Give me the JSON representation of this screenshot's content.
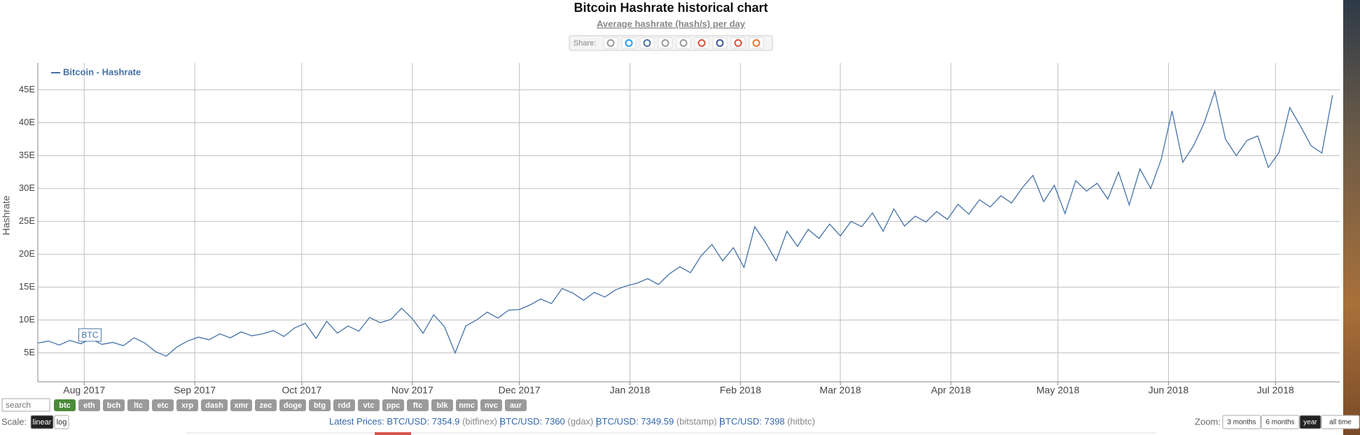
{
  "chart_data": {
    "type": "line",
    "title": "Bitcoin Hashrate historical chart",
    "subtitle": "Average hashrate (hash/s) per day",
    "ylabel": "Hashrate",
    "annotation": "BTC",
    "x": [
      0,
      3,
      6,
      9,
      12,
      15,
      18,
      21,
      24,
      27,
      30,
      33,
      36,
      39,
      42,
      45,
      48,
      51,
      54,
      57,
      60,
      63,
      66,
      69,
      72,
      75,
      78,
      81,
      84,
      87,
      90,
      93,
      96,
      99,
      102,
      105,
      108,
      111,
      114,
      117,
      120,
      123,
      126,
      129,
      132,
      135,
      138,
      141,
      144,
      147,
      150,
      153,
      156,
      159,
      162,
      165,
      168,
      171,
      174,
      177,
      180,
      183,
      186,
      189,
      192,
      195,
      198,
      201,
      204,
      207,
      210,
      213,
      216,
      219,
      222,
      225,
      228,
      231,
      234,
      237,
      240,
      243,
      246,
      249,
      252,
      255,
      258,
      261,
      264,
      267,
      270,
      273,
      276,
      279,
      282,
      285,
      288,
      291,
      294,
      297,
      300,
      303,
      306,
      309,
      312,
      315,
      318,
      321,
      324,
      327,
      330,
      333,
      336,
      339,
      342,
      345,
      348,
      351,
      354,
      357,
      360,
      363
    ],
    "series": [
      {
        "name": "Bitcoin - Hashrate",
        "color": "#4572a7",
        "values": [
          6.5,
          6.8,
          6.2,
          6.9,
          6.4,
          7.1,
          6.3,
          6.6,
          6.1,
          7.3,
          6.5,
          5.2,
          4.5,
          5.9,
          6.8,
          7.4,
          7.0,
          7.9,
          7.3,
          8.2,
          7.6,
          7.9,
          8.4,
          7.5,
          8.8,
          9.5,
          7.2,
          9.8,
          8.0,
          9.1,
          8.3,
          10.4,
          9.6,
          10.1,
          11.8,
          10.2,
          8.0,
          10.8,
          9.0,
          5.0,
          9.1,
          10.0,
          11.2,
          10.3,
          11.5,
          11.6,
          12.3,
          13.2,
          12.5,
          14.8,
          14.1,
          13.0,
          14.2,
          13.5,
          14.6,
          15.2,
          15.6,
          16.3,
          15.4,
          17.0,
          18.1,
          17.2,
          19.8,
          21.5,
          19.0,
          21.0,
          18.0,
          24.2,
          21.8,
          19.0,
          23.5,
          21.2,
          23.8,
          22.4,
          24.6,
          22.8,
          25.0,
          24.2,
          26.3,
          23.5,
          26.9,
          24.3,
          25.8,
          24.9,
          26.5,
          25.3,
          27.6,
          26.1,
          28.3,
          27.2,
          28.9,
          27.8,
          30.1,
          32.0,
          28.0,
          30.5,
          26.2,
          31.2,
          29.6,
          30.8,
          28.4,
          32.5,
          27.5,
          33.0,
          30.0,
          34.5,
          41.8,
          34.0,
          36.5,
          40.0,
          44.8,
          37.5,
          35.0,
          37.3,
          38.0,
          33.2,
          35.5,
          42.3,
          39.5,
          36.5,
          35.4,
          44.2
        ]
      }
    ],
    "xlim": [
      0,
      365
    ],
    "xticks": [
      {
        "value": 13,
        "label": "Aug 2017"
      },
      {
        "value": 44,
        "label": "Sep 2017"
      },
      {
        "value": 74,
        "label": "Oct 2017"
      },
      {
        "value": 105,
        "label": "Nov 2017"
      },
      {
        "value": 135,
        "label": "Dec 2017"
      },
      {
        "value": 166,
        "label": "Jan 2018"
      },
      {
        "value": 197,
        "label": "Feb 2018"
      },
      {
        "value": 225,
        "label": "Mar 2018"
      },
      {
        "value": 256,
        "label": "Apr 2018"
      },
      {
        "value": 286,
        "label": "May 2018"
      },
      {
        "value": 317,
        "label": "Jun 2018"
      },
      {
        "value": 347,
        "label": "Jul 2018"
      }
    ],
    "ylim": [
      0.6,
      49.1
    ],
    "yticks": [
      {
        "value": 5,
        "label": "5E"
      },
      {
        "value": 10,
        "label": "10E"
      },
      {
        "value": 15,
        "label": "15E"
      },
      {
        "value": 20,
        "label": "20E"
      },
      {
        "value": 25,
        "label": "25E"
      },
      {
        "value": 30,
        "label": "30E"
      },
      {
        "value": 35,
        "label": "35E"
      },
      {
        "value": 40,
        "label": "40E"
      },
      {
        "value": 45,
        "label": "45E"
      }
    ],
    "grid": true
  },
  "ui": {
    "share": "Share:",
    "search": "search",
    "coins": [
      "btc",
      "eth",
      "bch",
      "ltc",
      "etc",
      "xrp",
      "dash",
      "xmr",
      "zec",
      "doge",
      "btg",
      "rdd",
      "vtc",
      "ppc",
      "ftc",
      "blk",
      "nmc",
      "nvc",
      "aur"
    ],
    "scale": {
      "label": "Scale:",
      "options": [
        "linear",
        "log"
      ]
    },
    "prices": {
      "label": "Latest Prices:",
      "items": [
        {
          "pair": "BTC/USD:",
          "price": 7354.9,
          "source": "(bitfinex)"
        },
        {
          "pair": "BTC/USD:",
          "price": 7360,
          "source": "(gdax)"
        },
        {
          "pair": "BTC/USD:",
          "price": 7349.59,
          "source": "(bitstamp)"
        },
        {
          "pair": "BTC/USD:",
          "price": 7398,
          "source": "(hitbtc)"
        }
      ]
    },
    "zoom": {
      "label": "Zoom:",
      "options": [
        "3 months",
        "6 months",
        "year",
        "all time"
      ]
    }
  }
}
